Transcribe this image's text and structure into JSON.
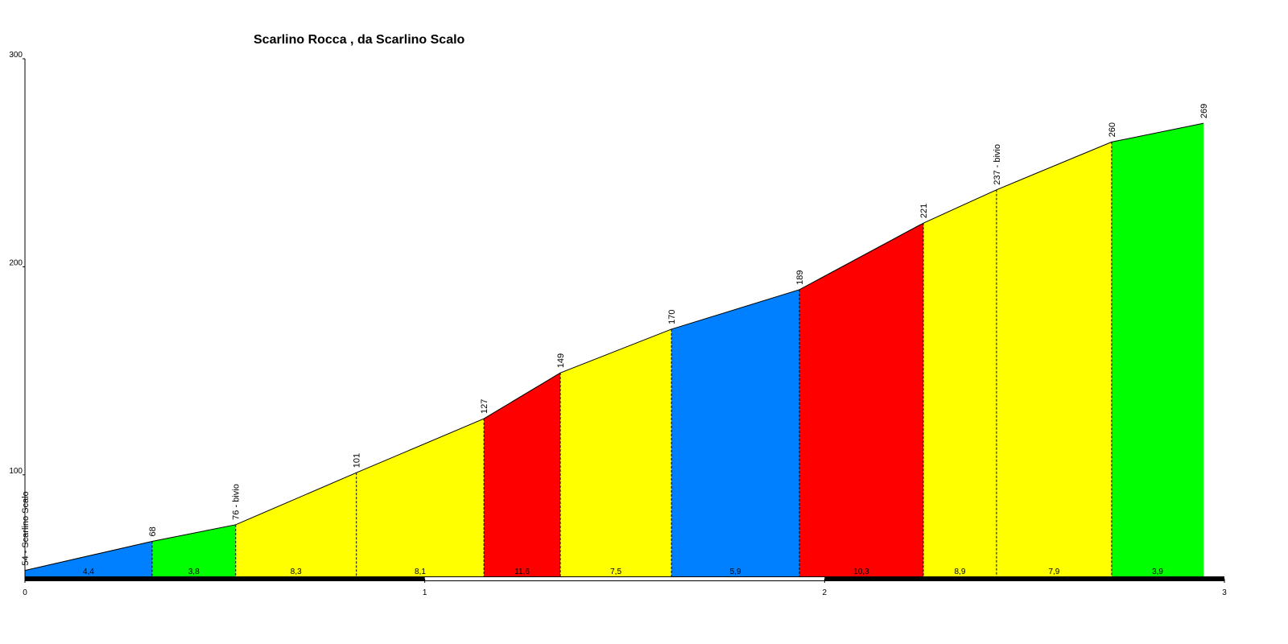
{
  "chart_data": {
    "type": "profile",
    "title": "Scarlino Rocca , da Scarlino Scalo",
    "x": [
      0,
      0.318,
      0.527,
      0.829,
      1.148,
      1.339,
      1.617,
      1.937,
      2.247,
      2.43,
      2.718,
      2.948
    ],
    "values": [
      54,
      68,
      76,
      101,
      127,
      149,
      170,
      189,
      221,
      237,
      260,
      269
    ],
    "value_labels": [
      "54 - Scarlino Scalo",
      "68",
      "76 - bivio",
      "101",
      "127",
      "149",
      "170",
      "189",
      "221",
      "237 - bivio",
      "260",
      "269"
    ],
    "gradients": [
      "4,4",
      "3,8",
      "8,3",
      "8,1",
      "11,6",
      "7,5",
      "5,9",
      "10,3",
      "8,9",
      "7,9",
      "3,9"
    ],
    "segment_colors": [
      "#0080ff",
      "#00ff00",
      "#ffff00",
      "#ffff00",
      "#ff0000",
      "#ffff00",
      "#0080ff",
      "#ff0000",
      "#ffff00",
      "#ffff00",
      "#00ff00"
    ],
    "xlim": [
      0,
      3
    ],
    "xticks": [
      0,
      1,
      2,
      3
    ],
    "ylim": [
      50,
      300
    ],
    "yticks": [
      100,
      200,
      300
    ]
  }
}
